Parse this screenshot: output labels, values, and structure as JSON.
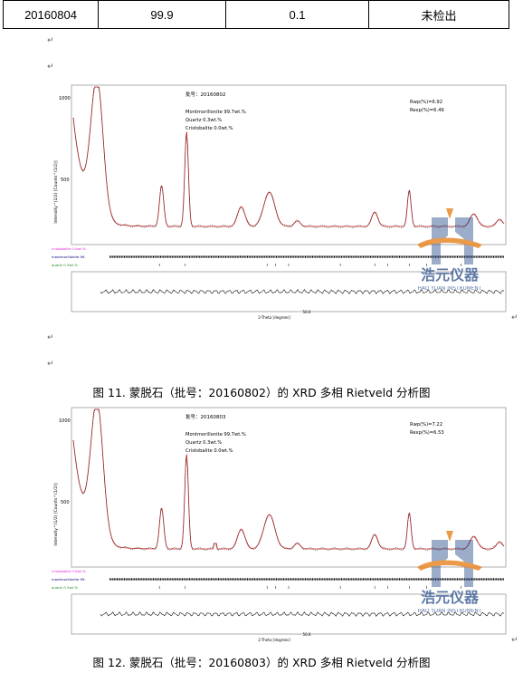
{
  "table": {
    "row": [
      "20160804",
      "99.9",
      "0.1",
      "未检出"
    ]
  },
  "para_mark": "↵",
  "figures": [
    {
      "batch_label": "批号：20160802",
      "phase1": "Montmorillonite 99.7wt.%",
      "phase2": "Quartz  0.3wt.%",
      "phase3": "Cristobalite 0.0wt.%",
      "rwp": "Rwp(%)=6.92",
      "rexp": "Rexp(%)=6.49",
      "caption": "图 11. 蒙脱石（批号：20160802）的 XRD 多相 Rietveld 分析图",
      "ytick_top": "1000",
      "ytick_mid": "500",
      "ylabel": "Intensity^(1/2) [Counts^(1/2)]",
      "xlabel": "2-Theta [degrees]",
      "xtick": "50.0",
      "legend": [
        "cristobalite 0.0wt.%",
        "montmorillonite 99.",
        "quartz 0.3wt.%"
      ]
    },
    {
      "batch_label": "批号：20160803",
      "phase1": "Montmorillonite 99.7wt.%",
      "phase2": "Quartz  0.3wt.%",
      "phase3": "Cristobalite 0.0wt.%",
      "rwp": "Rwp(%)=7.22",
      "rexp": "Rexp(%)=6.53",
      "caption": "图 12. 蒙脱石（批号：20160803）的 XRD 多相 Rietveld 分析图",
      "ytick_top": "1000",
      "ytick_mid": "500",
      "ylabel": "Intensity^(1/2) [Counts^(1/2)]",
      "xlabel": "2-Theta [degrees]",
      "xtick": "50.0",
      "legend": [
        "cristobalite 0.0wt.%",
        "montmorillonite 99.",
        "quartz 0.3wt.%"
      ]
    }
  ],
  "watermark": {
    "brand_cn": "浩元仪器",
    "brand_en": "HAO YUAN INSTRUMENT",
    "colors": {
      "blue": "#2b4f8a",
      "orange": "#e8892a"
    }
  }
}
